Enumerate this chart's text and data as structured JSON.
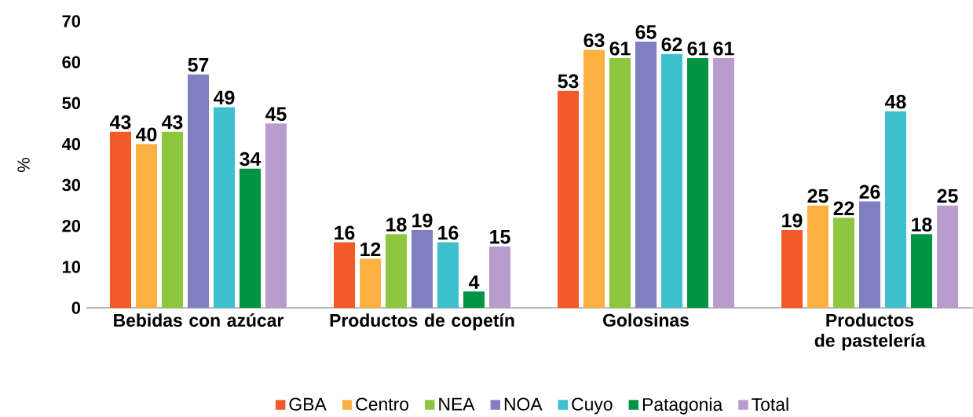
{
  "chart_data": {
    "type": "bar",
    "ylabel": "%",
    "categories": [
      "Bebidas con azúcar",
      "Productos de copetín",
      "Golosinas",
      "Productos de pastelería"
    ],
    "series": [
      {
        "name": "GBA",
        "color": "#f15a29",
        "values": [
          43,
          16,
          53,
          19
        ]
      },
      {
        "name": "Centro",
        "color": "#fbb040",
        "values": [
          40,
          12,
          63,
          25
        ]
      },
      {
        "name": "NEA",
        "color": "#8dc63f",
        "values": [
          43,
          18,
          61,
          22
        ]
      },
      {
        "name": "NOA",
        "color": "#8080c0",
        "values": [
          57,
          19,
          65,
          26
        ]
      },
      {
        "name": "Cuyo",
        "color": "#3dbfcf",
        "values": [
          49,
          16,
          62,
          48
        ]
      },
      {
        "name": "Patagonia",
        "color": "#009444",
        "values": [
          34,
          4,
          61,
          18
        ]
      },
      {
        "name": "Total",
        "color": "#b89ccc",
        "values": [
          45,
          15,
          61,
          25
        ]
      }
    ],
    "ylim": [
      0,
      70
    ],
    "yticks": [
      0,
      10,
      20,
      30,
      40,
      50,
      60,
      70
    ],
    "data_labels": true,
    "legend": "bottom"
  }
}
